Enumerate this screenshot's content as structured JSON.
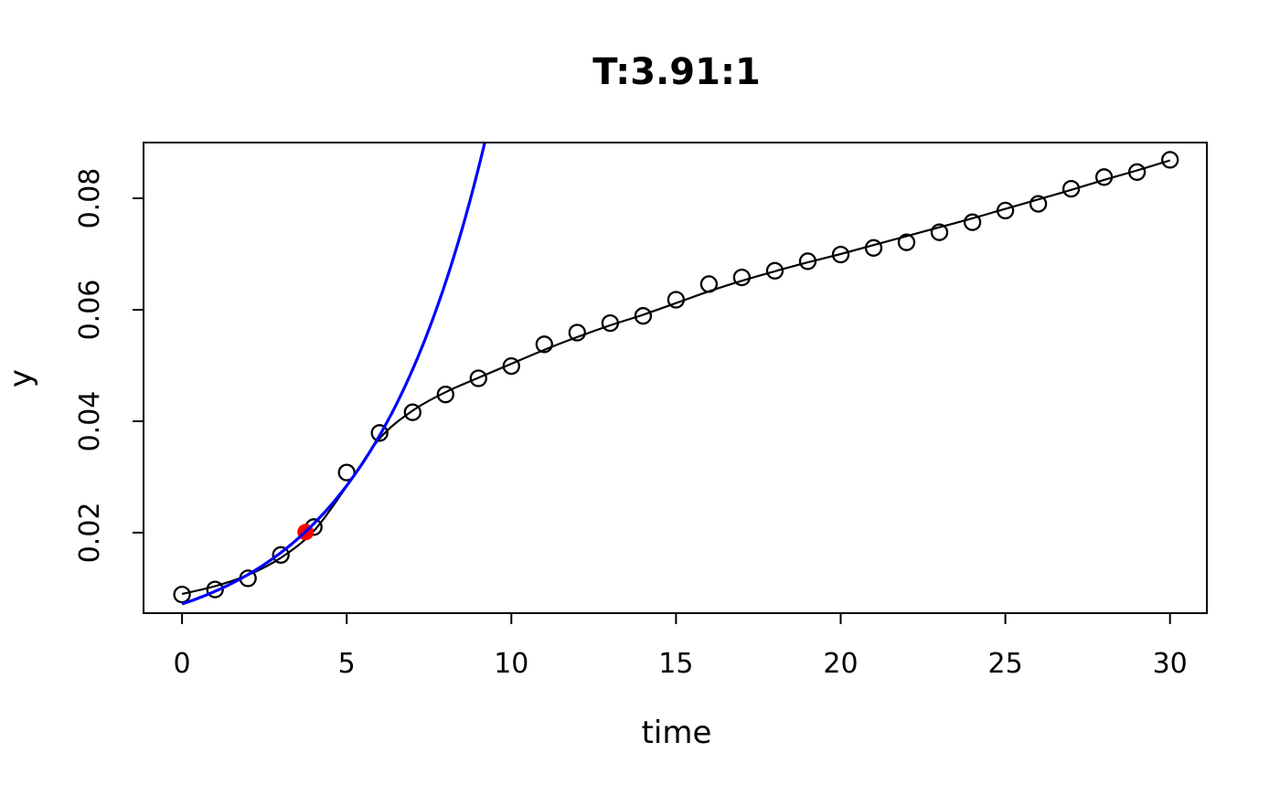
{
  "chart_data": {
    "type": "scatter",
    "title": "T:3.91:1",
    "xlabel": "time",
    "ylabel": "y",
    "xlim": [
      -1.17,
      31.12
    ],
    "ylim": [
      0.00556,
      0.09
    ],
    "grid": false,
    "legend_position": "none",
    "x_ticks": [
      0,
      5,
      10,
      15,
      20,
      25,
      30
    ],
    "x_tick_labels": [
      "0",
      "5",
      "10",
      "15",
      "20",
      "25",
      "30"
    ],
    "y_ticks": [
      0.02,
      0.04,
      0.06,
      0.08
    ],
    "y_tick_labels": [
      "0.02",
      "0.04",
      "0.06",
      "0.08"
    ],
    "colors": {
      "points": "#000000",
      "fit_line": "#000000",
      "exponential": "#0000ff",
      "marked_point": "#ff0000"
    },
    "series": [
      {
        "name": "observed-points",
        "kind": "points",
        "marker": "open-circle",
        "color": "#000000",
        "x": [
          0,
          1,
          2,
          3,
          4,
          5,
          6,
          7,
          8,
          9,
          10,
          11,
          12,
          13,
          14,
          15,
          16,
          17,
          18,
          19,
          20,
          21,
          22,
          23,
          24,
          25,
          26,
          27,
          28,
          29,
          30
        ],
        "y": [
          0.0089,
          0.0098,
          0.0118,
          0.016,
          0.021,
          0.0308,
          0.0379,
          0.0416,
          0.0448,
          0.0477,
          0.0499,
          0.0538,
          0.0559,
          0.0576,
          0.0589,
          0.0618,
          0.0646,
          0.0658,
          0.067,
          0.0687,
          0.0699,
          0.0711,
          0.0721,
          0.0739,
          0.0757,
          0.0778,
          0.079,
          0.0817,
          0.0838,
          0.0847,
          0.0869
        ]
      },
      {
        "name": "model-fit-line",
        "kind": "smooth-line",
        "color": "#000000",
        "x": [
          0,
          1,
          2,
          3,
          4,
          5,
          6,
          7,
          8,
          9,
          10,
          11,
          12,
          13,
          14,
          15,
          16,
          17,
          18,
          19,
          20,
          21,
          22,
          23,
          24,
          25,
          26,
          27,
          28,
          29,
          30
        ],
        "y": [
          0.009,
          0.0104,
          0.0124,
          0.0155,
          0.0203,
          0.0283,
          0.0369,
          0.0419,
          0.0452,
          0.0478,
          0.0503,
          0.0528,
          0.0551,
          0.0572,
          0.0591,
          0.0612,
          0.0633,
          0.0652,
          0.0669,
          0.0685,
          0.07,
          0.0716,
          0.0732,
          0.0748,
          0.0764,
          0.0781,
          0.0798,
          0.0815,
          0.0833,
          0.085,
          0.0868
        ]
      },
      {
        "name": "exponential-curve",
        "kind": "exponential",
        "color": "#0000ff",
        "y0": 0.0072,
        "rate": 0.2748,
        "t_start": 0,
        "t_end": 9.7
      },
      {
        "name": "marked-point",
        "kind": "filled-point",
        "color": "#ff0000",
        "x": [
          3.75
        ],
        "y": [
          0.0201
        ]
      }
    ]
  }
}
